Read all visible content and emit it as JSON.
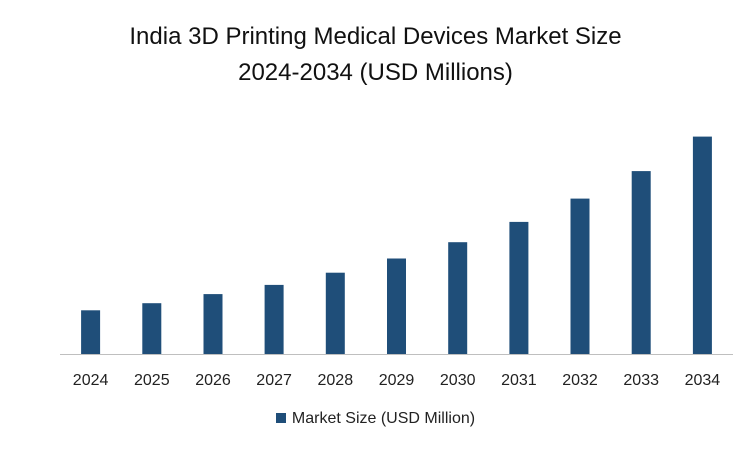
{
  "chart_data": {
    "type": "bar",
    "title_lines": [
      "India 3D Printing Medical Devices Market Size",
      "2024-2034 (USD Millions)"
    ],
    "categories": [
      "2024",
      "2025",
      "2026",
      "2027",
      "2028",
      "2029",
      "2030",
      "2031",
      "2032",
      "2033",
      "2034"
    ],
    "series": [
      {
        "name": "Market Size (USD Million)",
        "color": "#1f4e79",
        "values": [
          43,
          50,
          59,
          68,
          80,
          94,
          110,
          130,
          153,
          180,
          214
        ]
      }
    ],
    "ylim": [
      0,
      250
    ],
    "grid": false,
    "legend_position": "bottom",
    "axis_color": "#bfbfbf"
  }
}
